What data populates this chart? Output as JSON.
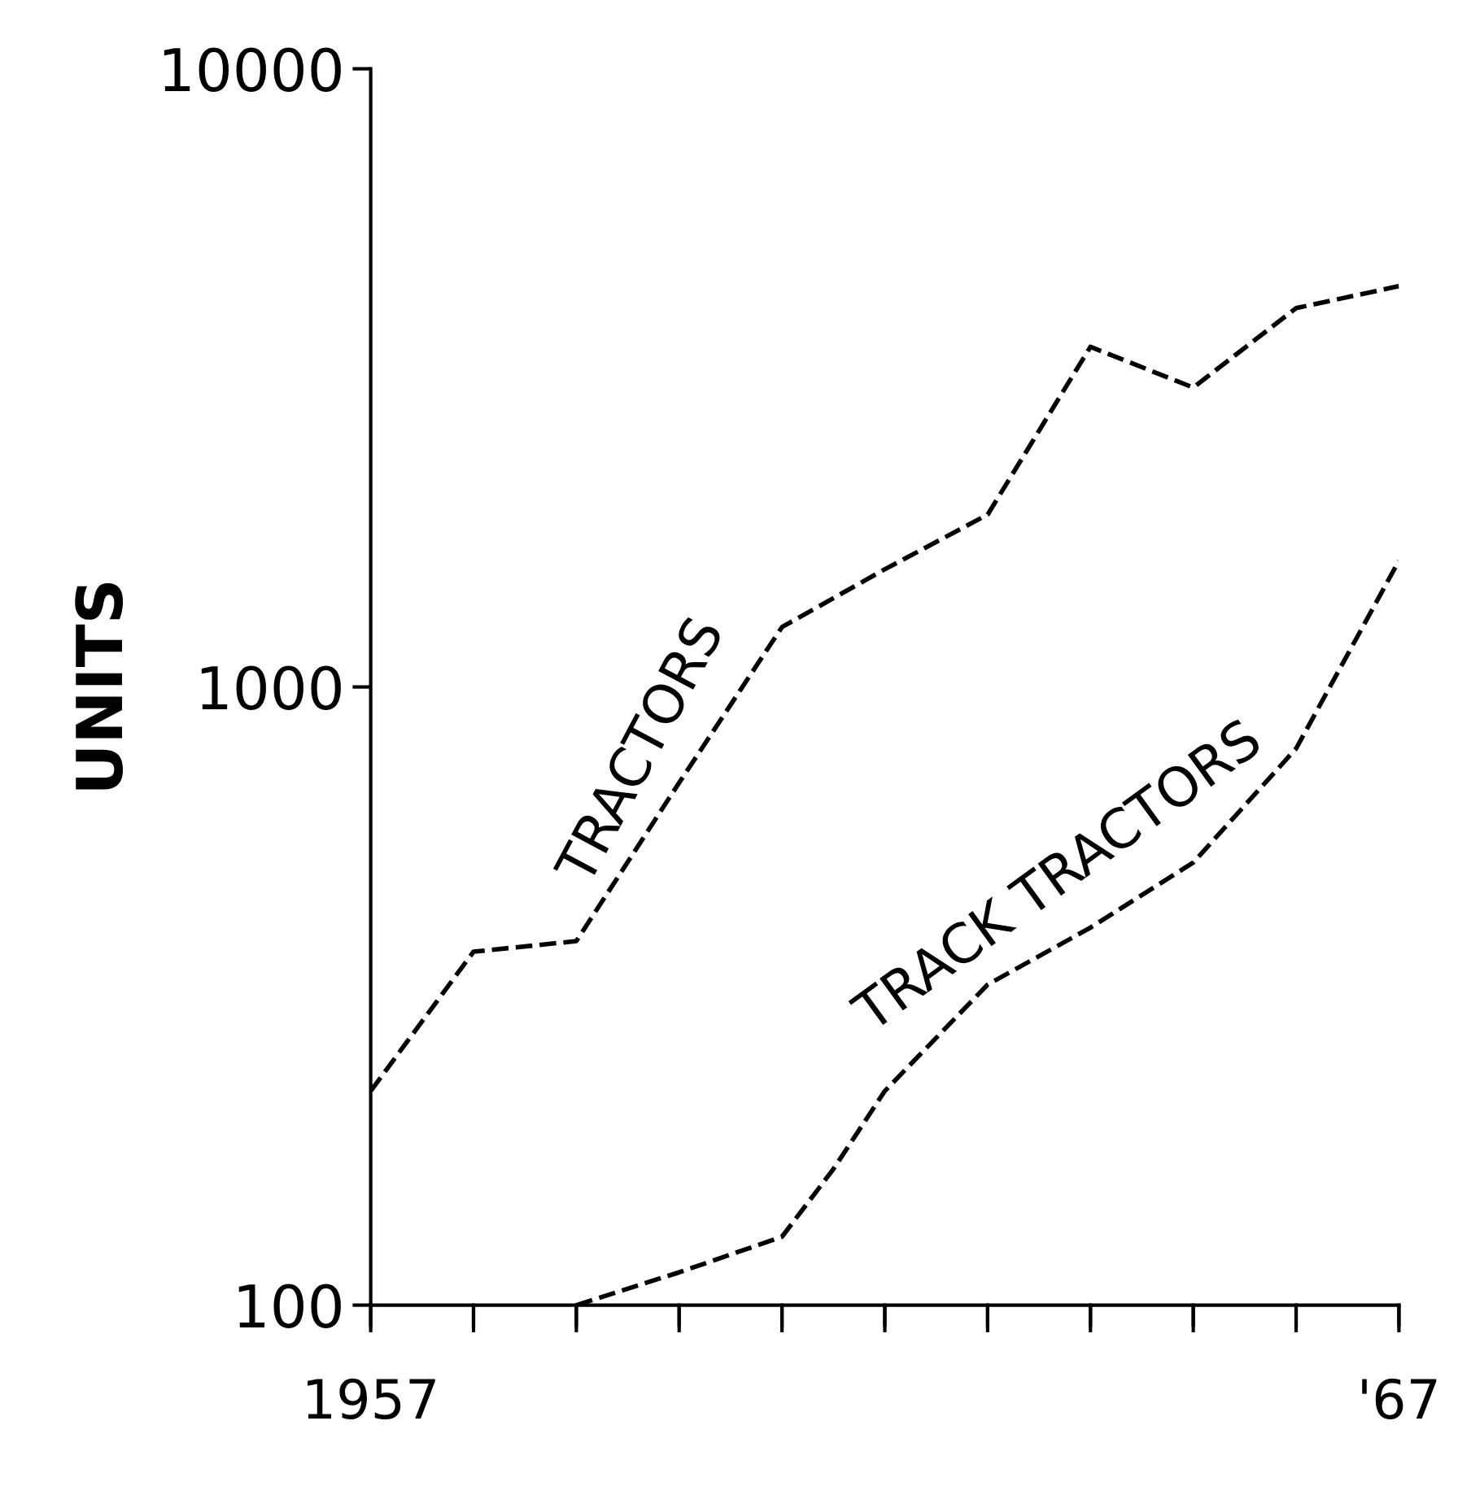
{
  "chart_data": {
    "type": "line",
    "ylabel": "UNITS",
    "log": "y",
    "grid": false,
    "legend": false,
    "line_style": "dashed",
    "marker": "none",
    "xlim": [
      1957,
      1967
    ],
    "ylim": [
      100,
      10000
    ],
    "xticks": [
      {
        "value": 1957,
        "label": "1957"
      },
      {
        "value": 1958,
        "label": null
      },
      {
        "value": 1959,
        "label": null
      },
      {
        "value": 1960,
        "label": null
      },
      {
        "value": 1961,
        "label": null
      },
      {
        "value": 1962,
        "label": null
      },
      {
        "value": 1963,
        "label": null
      },
      {
        "value": 1964,
        "label": null
      },
      {
        "value": 1965,
        "label": null
      },
      {
        "value": 1966,
        "label": null
      },
      {
        "value": 1967,
        "label": "'67"
      }
    ],
    "yticks": [
      100,
      1000,
      10000
    ],
    "series": [
      {
        "name": "TRACTORS",
        "color": "#000000",
        "x": [
          1957,
          1958,
          1959,
          1960,
          1961,
          1962,
          1963,
          1964,
          1965,
          1966,
          1967
        ],
        "values": [
          222,
          373,
          388,
          700,
          1250,
          1550,
          1900,
          3550,
          3050,
          4100,
          4450
        ]
      },
      {
        "name": "TRACK TRACTORS",
        "color": "#000000",
        "x": [
          1959,
          1960,
          1961,
          1961.5,
          1962,
          1963,
          1964,
          1965,
          1966,
          1967
        ],
        "values": [
          100,
          113,
          129,
          166,
          222,
          330,
          408,
          520,
          795,
          1600
        ]
      }
    ]
  }
}
